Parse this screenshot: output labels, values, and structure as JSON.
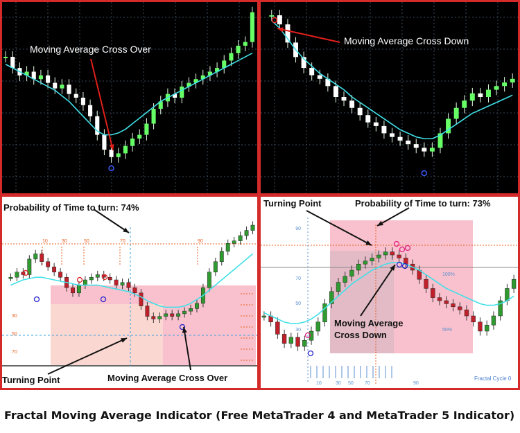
{
  "caption": "Fractal Moving Average Indicator (Free MetaTrader 4 and MetaTrader 5 Indicator)",
  "colors": {
    "frame": "#d42a2a",
    "dark_bg": "#000000",
    "grid": "#3a4a5a",
    "bull_candle": "#66ff66",
    "bear_candle": "#ffffff",
    "moving_average": "#40e0e8",
    "fractal_zone": "#f7b6c4",
    "fractal_zone_light": "#fbd9d2",
    "arrow": "#e0201a",
    "turn_up_marker": "#2222cc",
    "turn_down_marker": "#e02080"
  },
  "panels": {
    "top_left": {
      "annotation": "Moving Average Cross Over",
      "chart_data": {
        "type": "line",
        "title": "Moving Average Cross Over",
        "series": [
          {
            "values": [
              72,
              66,
              62,
              64,
              60,
              62,
              58,
              55,
              57,
              52,
              50,
              46,
              40,
              30,
              22,
              18,
              20,
              24,
              28,
              30,
              36,
              44,
              48,
              52,
              50,
              56,
              58,
              60,
              62,
              64,
              66,
              70,
              74,
              78,
              80,
              96
            ]
          },
          {
            "values": [
              68,
              66,
              64,
              62,
              60,
              58,
              56,
              54,
              51,
              48,
              44,
              40,
              36,
              32,
              30,
              30,
              31,
              33,
              36,
              39,
              42,
              45,
              48,
              50,
              52,
              54,
              56,
              58,
              60,
              62,
              64,
              66,
              68,
              70,
              72,
              74
            ]
          }
        ]
      }
    },
    "top_right": {
      "annotation": "Moving Average Cross Down",
      "chart_data": {
        "type": "line",
        "title": "Moving Average Cross Down",
        "series": [
          {
            "values": [
              95,
              90,
              80,
              72,
              66,
              62,
              60,
              56,
              50,
              48,
              44,
              40,
              36,
              34,
              30,
              28,
              26,
              24,
              22,
              20,
              22,
              30,
              38,
              44,
              48,
              52,
              50,
              54,
              56,
              58,
              60
            ]
          },
          {
            "values": [
              92,
              88,
              82,
              76,
              71,
              67,
              63,
              60,
              57,
              54,
              50,
              47,
              44,
              41,
              38,
              35,
              32,
              30,
              28,
              27,
              27,
              29,
              32,
              35,
              38,
              41,
              43,
              45,
              47,
              49,
              51
            ]
          }
        ]
      }
    },
    "bottom_left": {
      "probability_label": "Probability of Time to turn: 74%",
      "turning_point_label": "Turning Point",
      "cross_label": "Moving Average Cross Over",
      "top_ticks": [
        "10",
        "30",
        "50",
        "70",
        "90"
      ],
      "left_ticks": [
        "30",
        "50",
        "70"
      ],
      "chart_data": {
        "type": "line",
        "title": "Probability of Time to turn: 74%",
        "series": [
          {
            "values": [
              52,
              56,
              54,
              66,
              70,
              64,
              60,
              56,
              52,
              44,
              40,
              46,
              50,
              52,
              54,
              52,
              50,
              46,
              48,
              44,
              40,
              30,
              22,
              20,
              22,
              24,
              22,
              24,
              26,
              28,
              32,
              44,
              56,
              64,
              72,
              78,
              80,
              84,
              88,
              92
            ]
          },
          {
            "values": [
              46,
              48,
              50,
              51,
              52,
              52,
              51,
              50,
              49,
              48,
              47,
              46,
              46,
              46,
              46,
              45,
              44,
              43,
              42,
              41,
              39,
              37,
              34,
              32,
              30,
              29,
              29,
              29,
              30,
              32,
              35,
              38,
              42,
              46,
              50,
              54,
              58,
              62,
              66,
              70
            ]
          }
        ]
      }
    },
    "bottom_right": {
      "probability_label": "Probability of Time to turn: 73%",
      "turning_point_label": "Turning Point",
      "cross_label_line1": "Moving Average",
      "cross_label_line2": "Cross Down",
      "left_ticks": [
        "90",
        "70",
        "50",
        "30"
      ],
      "right_ticks": [
        "100%",
        "50%"
      ],
      "bottom_ticks": [
        "10",
        "30",
        "50",
        "70",
        "90"
      ],
      "footer": "Fractal Cycle 0",
      "chart_data": {
        "type": "line",
        "title": "Probability of Time to turn: 73%",
        "series": [
          {
            "values": [
              40,
              36,
              28,
              22,
              26,
              20,
              24,
              30,
              36,
              48,
              56,
              62,
              66,
              70,
              74,
              76,
              78,
              80,
              82,
              80,
              78,
              74,
              70,
              64,
              58,
              52,
              50,
              48,
              46,
              44,
              40,
              36,
              30,
              34,
              40,
              50,
              58,
              64
            ]
          },
          {
            "values": [
              42,
              40,
              38,
              36,
              35,
              35,
              36,
              38,
              41,
              45,
              49,
              53,
              57,
              61,
              64,
              67,
              70,
              72,
              74,
              75,
              75,
              74,
              72,
              70,
              67,
              64,
              61,
              58,
              56,
              54,
              52,
              50,
              48,
              47,
              47,
              48,
              50,
              53
            ]
          }
        ]
      }
    }
  }
}
